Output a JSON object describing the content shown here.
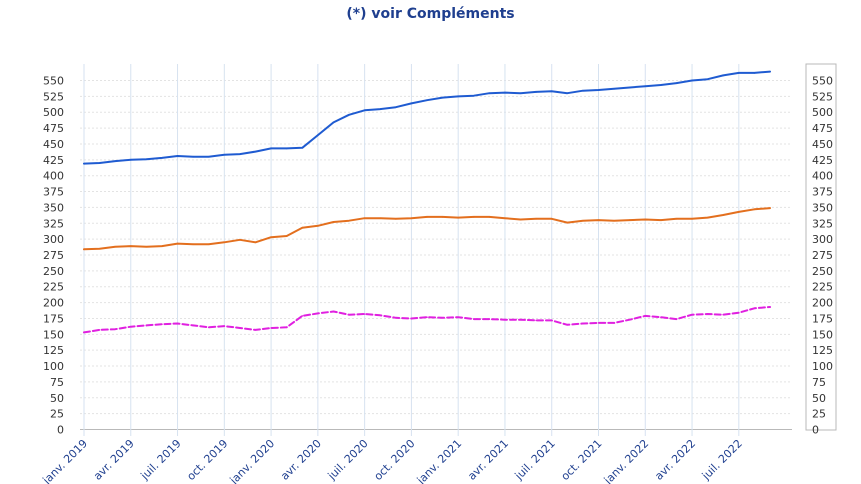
{
  "header": {
    "title": "(*) voir Compléments"
  },
  "chart_data": {
    "type": "line",
    "title": "(*) voir Compléments",
    "xlabel": "",
    "ylabel": "",
    "ylim": [
      0,
      565
    ],
    "yticks": [
      0,
      25,
      50,
      75,
      100,
      125,
      150,
      175,
      200,
      225,
      250,
      275,
      300,
      325,
      350,
      375,
      400,
      425,
      450,
      475,
      500,
      525,
      550
    ],
    "x_months": 45,
    "x_ticks": [
      {
        "month": 0,
        "label": "janv. 2019"
      },
      {
        "month": 3,
        "label": "avr. 2019"
      },
      {
        "month": 6,
        "label": "juil. 2019"
      },
      {
        "month": 9,
        "label": "oct. 2019"
      },
      {
        "month": 12,
        "label": "janv. 2020"
      },
      {
        "month": 15,
        "label": "avr. 2020"
      },
      {
        "month": 18,
        "label": "juil. 2020"
      },
      {
        "month": 21,
        "label": "oct. 2020"
      },
      {
        "month": 24,
        "label": "janv. 2021"
      },
      {
        "month": 27,
        "label": "avr. 2021"
      },
      {
        "month": 30,
        "label": "juil. 2021"
      },
      {
        "month": 33,
        "label": "oct. 2021"
      },
      {
        "month": 36,
        "label": "janv. 2022"
      },
      {
        "month": 39,
        "label": "avr. 2022"
      },
      {
        "month": 42,
        "label": "juil. 2022"
      }
    ],
    "series": [
      {
        "name": "blue",
        "color": "#1f5bd1",
        "dashed": false,
        "values": [
          419,
          420,
          423,
          425,
          426,
          428,
          431,
          430,
          430,
          433,
          434,
          438,
          443,
          443,
          444,
          464,
          484,
          496,
          503,
          505,
          508,
          514,
          519,
          523,
          525,
          526,
          530,
          531,
          530,
          532,
          533,
          530,
          534,
          535,
          537,
          539,
          541,
          543,
          546,
          550,
          552,
          558,
          562,
          562,
          564
        ]
      },
      {
        "name": "orange",
        "color": "#e36f1e",
        "dashed": false,
        "values": [
          284,
          285,
          288,
          289,
          288,
          289,
          293,
          292,
          292,
          295,
          299,
          295,
          303,
          305,
          318,
          321,
          327,
          329,
          333,
          333,
          332,
          333,
          335,
          335,
          334,
          335,
          335,
          333,
          331,
          332,
          332,
          326,
          329,
          330,
          329,
          330,
          331,
          330,
          332,
          332,
          334,
          338,
          343,
          347,
          349
        ]
      },
      {
        "name": "magenta",
        "color": "#e020e0",
        "dashed": true,
        "values": [
          153,
          157,
          158,
          162,
          164,
          166,
          167,
          164,
          161,
          163,
          160,
          157,
          160,
          161,
          179,
          183,
          186,
          181,
          182,
          180,
          176,
          175,
          177,
          176,
          177,
          174,
          174,
          173,
          173,
          172,
          172,
          165,
          167,
          168,
          168,
          173,
          179,
          177,
          174,
          181,
          182,
          181,
          184,
          191,
          193
        ]
      }
    ]
  }
}
